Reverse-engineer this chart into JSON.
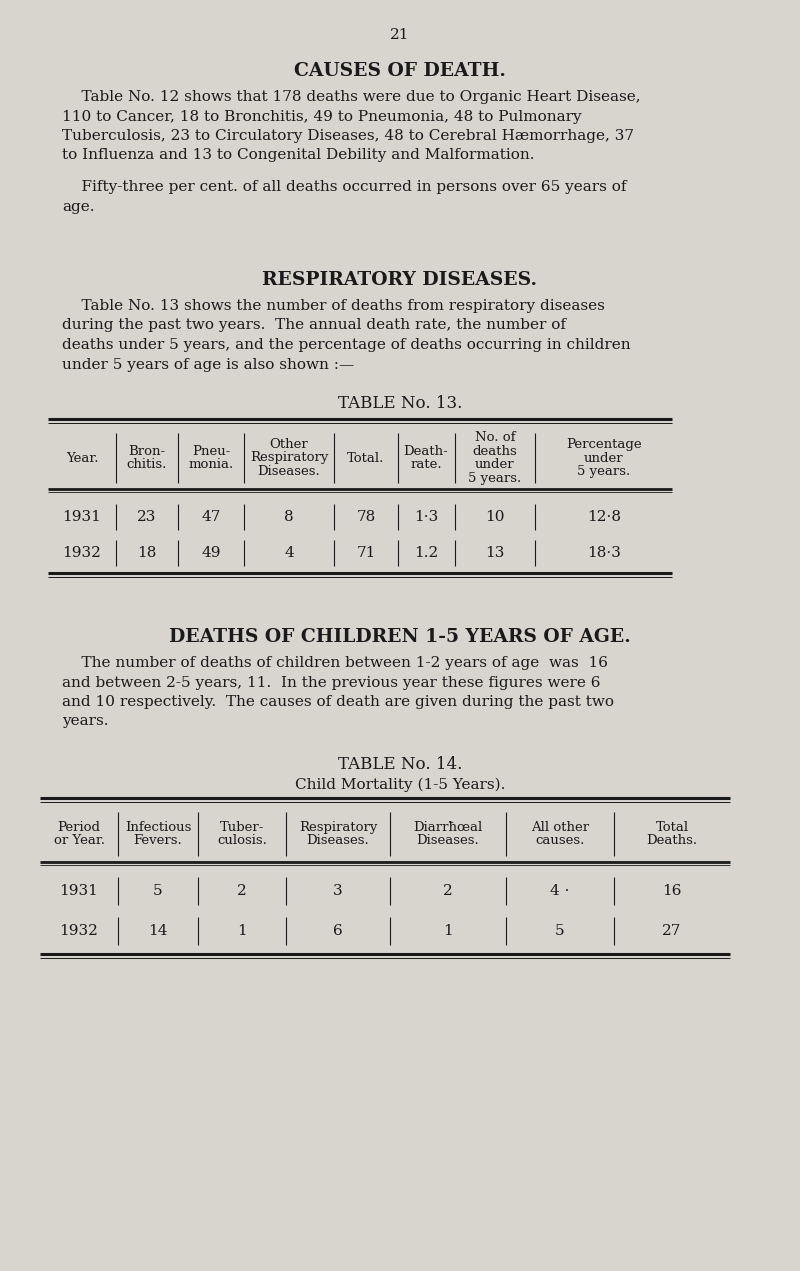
{
  "page_number": "21",
  "bg_color": "#d8d4ce",
  "text_color": "#1a1a1a",
  "section1_title": "CAUSES OF DEATH.",
  "section1_para_lines": [
    "    Table No. 12 shows that 178 deaths were due to Organic Heart Disease,",
    "110 to Cancer, 18 to Bronchitis, 49 to Pneumonia, 48 to Pulmonary",
    "Tuberculosis, 23 to Circulatory Diseases, 48 to Cerebral Hæmorrhage, 37",
    "to Influenza and 13 to Congenital Debility and Malformation."
  ],
  "section1_para2_lines": [
    "    Fifty-three per cent. of all deaths occurred in persons over 65 years of",
    "age."
  ],
  "section2_title": "RESPIRATORY DISEASES.",
  "section2_para_lines": [
    "    Table No. 13 shows the number of deaths from respiratory diseases",
    "during the past two years.  The annual death rate, the number of",
    "deaths under 5 years, and the percentage of deaths occurring in children",
    "under 5 years of age is also shown :—"
  ],
  "table13_title": "TABLE No. 13.",
  "table13_col_headers": [
    "Year.",
    "Bron-\nchitis.",
    "Pneu-\nmonia.",
    "Other\nRespiratory\nDiseases.",
    "Total.",
    "Death-\nrate.",
    "No. of\ndeaths\nunder\n5 years.",
    "Percentage\nunder\n5 years."
  ],
  "table13_rows": [
    [
      "1931",
      "23",
      "47",
      "8",
      "78",
      "1·3",
      "10",
      "12·8"
    ],
    [
      "1932",
      "18",
      "49",
      "4",
      "71",
      "1.2",
      "13",
      "18·3"
    ]
  ],
  "section3_title": "DEATHS OF CHILDREN 1-5 YEARS OF AGE.",
  "section3_para_lines": [
    "    The number of deaths of children between 1-2 years of age  was  16",
    "and between 2-5 years, 11.  In the previous year these figures were 6",
    "and 10 respectively.  The causes of death are given during the past two",
    "years."
  ],
  "table14_title": "TABLE No. 14.",
  "table14_subtitle": "Child Mortality (1-5 Years).",
  "table14_col_headers": [
    "Period\nor Year.",
    "Infectious\nFevers.",
    "Tuber-\nculosis.",
    "Respiratory\nDiseases.",
    "Diarrħœal\nDiseases.",
    "All other\ncauses.",
    "Total\nDeaths."
  ],
  "table14_rows": [
    [
      "1931",
      "5",
      "2",
      "3",
      "2",
      "4 ·",
      "16"
    ],
    [
      "1932",
      "14",
      "1",
      "6",
      "1",
      "5",
      "27"
    ]
  ]
}
